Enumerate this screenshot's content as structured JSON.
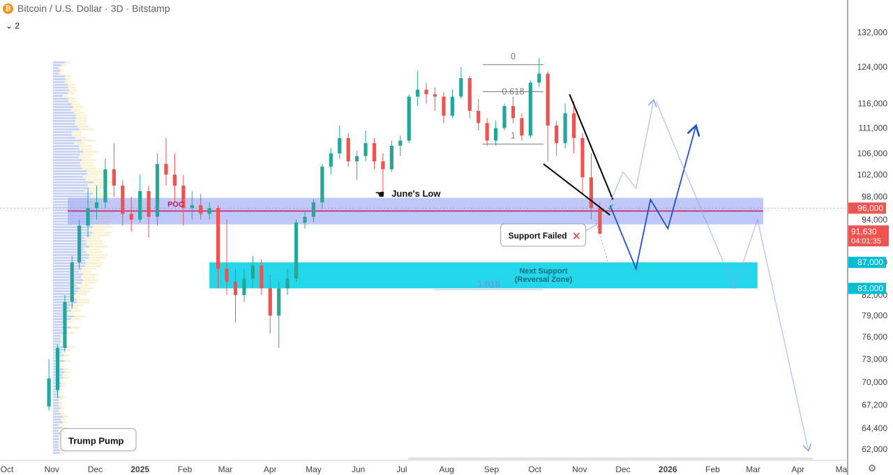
{
  "header": {
    "symbol_title": "Bitcoin / U.S. Dollar · 3D · Bitstamp",
    "indicator_count": "2",
    "btc_glyph": "₿"
  },
  "colors": {
    "bull": "#26a69a",
    "bear": "#ef5350",
    "poc_zone": "#aab5f5",
    "support_zone": "#19d3e8",
    "price_tag": "#ef5350",
    "zone_tag": "#00bcd4",
    "projection": "#1e50c8"
  },
  "chart_data": {
    "type": "candlestick",
    "title": "Bitcoin / U.S. Dollar · 3D · Bitstamp",
    "y_axis": {
      "ticks": [
        "62,000",
        "64,400",
        "67,200",
        "70,000",
        "73,000",
        "76,000",
        "79,000",
        "82,000",
        "87,000",
        "94,000",
        "98,000",
        "102,000",
        "106,000",
        "111,000",
        "116,000",
        "124,000",
        "132,000"
      ],
      "scale": "log"
    },
    "x_axis": {
      "ticks": [
        "Oct",
        "Nov",
        "Dec",
        "2025",
        "Feb",
        "Mar",
        "Apr",
        "May",
        "Jun",
        "Jul",
        "Aug",
        "Sep",
        "Oct",
        "Nov",
        "Dec",
        "2026",
        "Feb",
        "Mar",
        "Apr",
        "Ma"
      ]
    },
    "candles": [
      {
        "t": "2024-10-30",
        "o": 67000,
        "h": 73000,
        "l": 66500,
        "c": 70500
      },
      {
        "t": "2024-11-05",
        "o": 69000,
        "h": 75000,
        "l": 68000,
        "c": 74500
      },
      {
        "t": "2024-11-10",
        "o": 74500,
        "h": 82000,
        "l": 74000,
        "c": 81000
      },
      {
        "t": "2024-11-15",
        "o": 81000,
        "h": 88000,
        "l": 80000,
        "c": 87000
      },
      {
        "t": "2024-11-20",
        "o": 87000,
        "h": 94000,
        "l": 86000,
        "c": 93000
      },
      {
        "t": "2024-11-26",
        "o": 93000,
        "h": 99500,
        "l": 91000,
        "c": 96000
      },
      {
        "t": "2024-12-02",
        "o": 96000,
        "h": 100000,
        "l": 94000,
        "c": 97000
      },
      {
        "t": "2024-12-08",
        "o": 97000,
        "h": 105000,
        "l": 96000,
        "c": 103000
      },
      {
        "t": "2024-12-14",
        "o": 103000,
        "h": 108000,
        "l": 98000,
        "c": 100000
      },
      {
        "t": "2024-12-20",
        "o": 100000,
        "h": 101000,
        "l": 93000,
        "c": 95000
      },
      {
        "t": "2024-12-26",
        "o": 95000,
        "h": 98000,
        "l": 92000,
        "c": 94000
      },
      {
        "t": "2025-01-01",
        "o": 94000,
        "h": 102000,
        "l": 93500,
        "c": 99000
      },
      {
        "t": "2025-01-07",
        "o": 99000,
        "h": 100000,
        "l": 91000,
        "c": 94500
      },
      {
        "t": "2025-01-13",
        "o": 94500,
        "h": 106000,
        "l": 93000,
        "c": 104000
      },
      {
        "t": "2025-01-19",
        "o": 104000,
        "h": 109000,
        "l": 100000,
        "c": 102000
      },
      {
        "t": "2025-01-25",
        "o": 102000,
        "h": 106000,
        "l": 97000,
        "c": 100000
      },
      {
        "t": "2025-01-31",
        "o": 100000,
        "h": 102000,
        "l": 93000,
        "c": 96000
      },
      {
        "t": "2025-02-06",
        "o": 96000,
        "h": 99000,
        "l": 94000,
        "c": 96500
      },
      {
        "t": "2025-02-12",
        "o": 96500,
        "h": 98500,
        "l": 94000,
        "c": 95000
      },
      {
        "t": "2025-02-18",
        "o": 95000,
        "h": 97000,
        "l": 94000,
        "c": 96000
      },
      {
        "t": "2025-02-24",
        "o": 96000,
        "h": 96500,
        "l": 83000,
        "c": 86000
      },
      {
        "t": "2025-03-02",
        "o": 86000,
        "h": 94000,
        "l": 82000,
        "c": 84000
      },
      {
        "t": "2025-03-08",
        "o": 84000,
        "h": 86000,
        "l": 78000,
        "c": 82000
      },
      {
        "t": "2025-03-14",
        "o": 82000,
        "h": 86000,
        "l": 81000,
        "c": 84500
      },
      {
        "t": "2025-03-20",
        "o": 84500,
        "h": 88000,
        "l": 83000,
        "c": 86500
      },
      {
        "t": "2025-03-26",
        "o": 86500,
        "h": 87500,
        "l": 82000,
        "c": 83000
      },
      {
        "t": "2025-04-01",
        "o": 83000,
        "h": 85000,
        "l": 76500,
        "c": 79000
      },
      {
        "t": "2025-04-07",
        "o": 79000,
        "h": 84000,
        "l": 74500,
        "c": 83000
      },
      {
        "t": "2025-04-13",
        "o": 83000,
        "h": 86000,
        "l": 82000,
        "c": 84500
      },
      {
        "t": "2025-04-19",
        "o": 84500,
        "h": 94000,
        "l": 84000,
        "c": 93500
      },
      {
        "t": "2025-04-25",
        "o": 93500,
        "h": 95500,
        "l": 92500,
        "c": 94500
      },
      {
        "t": "2025-05-01",
        "o": 94500,
        "h": 97500,
        "l": 93500,
        "c": 97000
      },
      {
        "t": "2025-05-07",
        "o": 97000,
        "h": 104000,
        "l": 96000,
        "c": 103500
      },
      {
        "t": "2025-05-13",
        "o": 103500,
        "h": 107000,
        "l": 102000,
        "c": 106000
      },
      {
        "t": "2025-05-19",
        "o": 106000,
        "h": 111500,
        "l": 105000,
        "c": 109000
      },
      {
        "t": "2025-05-25",
        "o": 109000,
        "h": 110000,
        "l": 103500,
        "c": 104500
      },
      {
        "t": "2025-05-31",
        "o": 104500,
        "h": 106500,
        "l": 101000,
        "c": 105500
      },
      {
        "t": "2025-06-06",
        "o": 105500,
        "h": 110500,
        "l": 104500,
        "c": 108000
      },
      {
        "t": "2025-06-12",
        "o": 108000,
        "h": 109000,
        "l": 103000,
        "c": 104500
      },
      {
        "t": "2025-06-18",
        "o": 104500,
        "h": 106000,
        "l": 98500,
        "c": 103000
      },
      {
        "t": "2025-06-24",
        "o": 103000,
        "h": 108500,
        "l": 102500,
        "c": 107500
      },
      {
        "t": "2025-06-30",
        "o": 107500,
        "h": 109500,
        "l": 105500,
        "c": 108500
      },
      {
        "t": "2025-07-06",
        "o": 108500,
        "h": 118000,
        "l": 108000,
        "c": 117500
      },
      {
        "t": "2025-07-12",
        "o": 117500,
        "h": 123000,
        "l": 115500,
        "c": 119000
      },
      {
        "t": "2025-07-18",
        "o": 119000,
        "h": 120500,
        "l": 116000,
        "c": 118000
      },
      {
        "t": "2025-07-24",
        "o": 118000,
        "h": 119500,
        "l": 114500,
        "c": 117500
      },
      {
        "t": "2025-07-30",
        "o": 117500,
        "h": 118500,
        "l": 112000,
        "c": 113500
      },
      {
        "t": "2025-08-05",
        "o": 113500,
        "h": 119000,
        "l": 113000,
        "c": 117500
      },
      {
        "t": "2025-08-11",
        "o": 117500,
        "h": 124000,
        "l": 117000,
        "c": 121500
      },
      {
        "t": "2025-08-17",
        "o": 121500,
        "h": 122000,
        "l": 113000,
        "c": 114500
      },
      {
        "t": "2025-08-23",
        "o": 114500,
        "h": 117000,
        "l": 110500,
        "c": 112000
      },
      {
        "t": "2025-08-29",
        "o": 112000,
        "h": 113000,
        "l": 107500,
        "c": 108500
      },
      {
        "t": "2025-09-04",
        "o": 108500,
        "h": 112500,
        "l": 107500,
        "c": 111000
      },
      {
        "t": "2025-09-10",
        "o": 111000,
        "h": 116000,
        "l": 110500,
        "c": 115500
      },
      {
        "t": "2025-09-16",
        "o": 115500,
        "h": 117500,
        "l": 112000,
        "c": 113000
      },
      {
        "t": "2025-09-22",
        "o": 113000,
        "h": 114000,
        "l": 108500,
        "c": 109500
      },
      {
        "t": "2025-09-28",
        "o": 109500,
        "h": 121000,
        "l": 109000,
        "c": 120500
      },
      {
        "t": "2025-10-04",
        "o": 120500,
        "h": 126000,
        "l": 119500,
        "c": 122500
      },
      {
        "t": "2025-10-10",
        "o": 122500,
        "h": 123000,
        "l": 104500,
        "c": 111500
      },
      {
        "t": "2025-10-16",
        "o": 111500,
        "h": 112500,
        "l": 105500,
        "c": 108000
      },
      {
        "t": "2025-10-22",
        "o": 108000,
        "h": 116000,
        "l": 107000,
        "c": 114000
      },
      {
        "t": "2025-10-28",
        "o": 114000,
        "h": 116500,
        "l": 106000,
        "c": 109000
      },
      {
        "t": "2025-11-03",
        "o": 109000,
        "h": 110000,
        "l": 98500,
        "c": 101500
      },
      {
        "t": "2025-11-09",
        "o": 101500,
        "h": 106000,
        "l": 94000,
        "c": 96000
      },
      {
        "t": "2025-11-15",
        "o": 96000,
        "h": 97000,
        "l": 91500,
        "c": 91630
      }
    ],
    "zones": [
      {
        "label": "POC",
        "from": "2024-11-12",
        "to": "2026-03-08",
        "low": 93200,
        "high": 97800
      },
      {
        "label": "Next Support (Reversal Zone)",
        "from": "2025-02-18",
        "to": "2026-03-04",
        "low": 83000,
        "high": 87000
      }
    ],
    "poc_line": 95500,
    "current_price": {
      "value": "91,630",
      "countdown": "04:01:35"
    },
    "price_tags": [
      {
        "label": "96,000",
        "value": 96000,
        "kind": "line"
      },
      {
        "label": "87,000",
        "value": 87000,
        "kind": "zone"
      },
      {
        "label": "83,000",
        "value": 83000,
        "kind": "zone"
      }
    ],
    "fib": {
      "levels": [
        "0",
        "0.618",
        "1",
        "1.618"
      ],
      "top": 124500,
      "bottom": 107800,
      "start": "2025-08-26",
      "end": "2025-10-07"
    },
    "wedge_lines": [
      {
        "from": {
          "t": "2025-10-25",
          "v": 118000
        },
        "to": {
          "t": "2025-11-24",
          "v": 97500
        }
      },
      {
        "from": {
          "t": "2025-10-07",
          "v": 104000
        },
        "to": {
          "t": "2025-11-22",
          "v": 94800
        }
      }
    ],
    "projections": [
      {
        "style": "solid",
        "points": [
          [
            "2025-11-22",
            "96500"
          ],
          [
            "2025-12-10",
            "86000"
          ],
          [
            "2025-12-20",
            "97500"
          ],
          [
            "2026-01-01",
            "92500"
          ],
          [
            "2026-01-20",
            "111000"
          ]
        ]
      },
      {
        "style": "faint",
        "points": [
          [
            "2025-11-22",
            "97000"
          ],
          [
            "2025-12-01",
            "102500"
          ],
          [
            "2025-12-10",
            "99500"
          ],
          [
            "2025-12-22",
            "116500"
          ]
        ]
      },
      {
        "style": "faint",
        "points": [
          [
            "2025-12-24",
            "116500"
          ],
          [
            "2026-01-10",
            "104500"
          ],
          [
            "2026-02-16",
            "83000"
          ],
          [
            "2026-03-04",
            "94000"
          ],
          [
            "2026-04-08",
            "62000"
          ]
        ]
      },
      {
        "style": "dotted",
        "points": [
          [
            "2025-11-12",
            "94000"
          ],
          [
            "2025-11-22",
            "86000"
          ]
        ]
      }
    ],
    "annotations": [
      {
        "text": "June's Low",
        "t": "2025-06-22",
        "v": 98500
      },
      {
        "text": "Support Failed",
        "t": "2025-10-15",
        "v": 91300
      },
      {
        "text": "Trump Pump",
        "t": "2024-11-12",
        "v": 63000
      },
      {
        "text": "✓",
        "t": "2025-11-23",
        "v": 96200
      },
      {
        "text": "✕",
        "t": "2025-10-30",
        "v": 91300
      }
    ],
    "zone_labels": [
      "Next Support",
      "(Reversal Zone)"
    ]
  },
  "gear_glyph": "⚙"
}
